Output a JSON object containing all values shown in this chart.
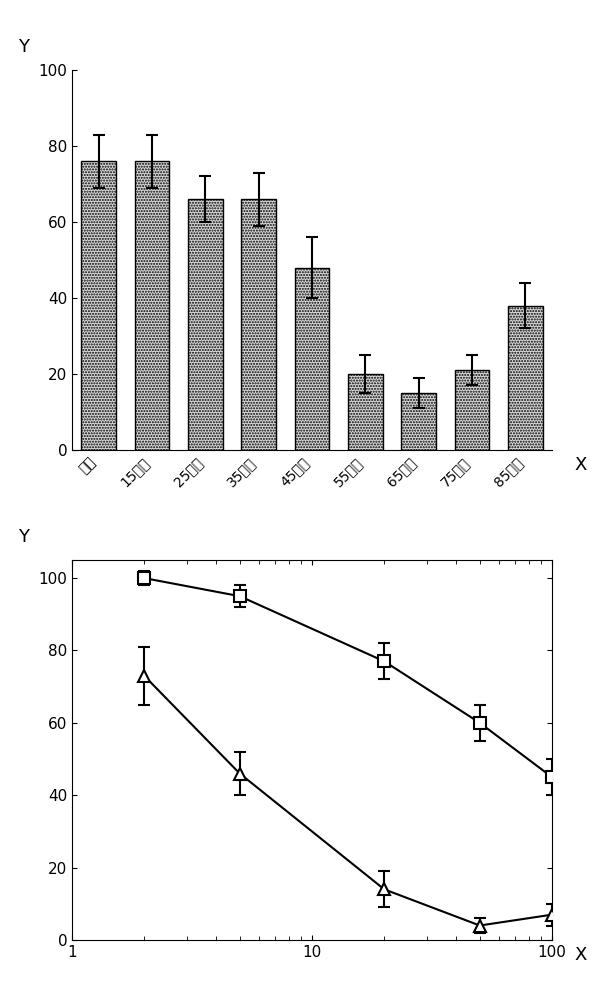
{
  "bar_categories": [
    "对照",
    "15脉尺",
    "25脉尺",
    "35脉尺",
    "45脉尺",
    "55脉尺",
    "65脉尺",
    "75脉尺",
    "85脉尺"
  ],
  "bar_values": [
    76,
    76,
    66,
    66,
    48,
    20,
    15,
    21,
    38
  ],
  "bar_errors": [
    7,
    7,
    6,
    7,
    8,
    5,
    4,
    4,
    6
  ],
  "bar_color": "#d8d8d8",
  "bar_edgecolor": "#000000",
  "bar_ylabel": "Y",
  "bar_xlabel": "X",
  "bar_ylim": [
    0,
    100
  ],
  "bar_yticks": [
    0,
    20,
    40,
    60,
    80,
    100
  ],
  "line_x": [
    2,
    5,
    20,
    50,
    100
  ],
  "line_square_y": [
    100,
    95,
    77,
    60,
    45
  ],
  "line_square_yerr": [
    2,
    3,
    5,
    5,
    5
  ],
  "line_triangle_y": [
    73,
    46,
    14,
    4,
    7
  ],
  "line_triangle_yerr": [
    8,
    6,
    5,
    2,
    3
  ],
  "line_ylabel": "Y",
  "line_xlabel": "X",
  "line_ylim": [
    0,
    105
  ],
  "line_yticks": [
    0,
    20,
    40,
    60,
    80,
    100
  ],
  "background_color": "#ffffff"
}
